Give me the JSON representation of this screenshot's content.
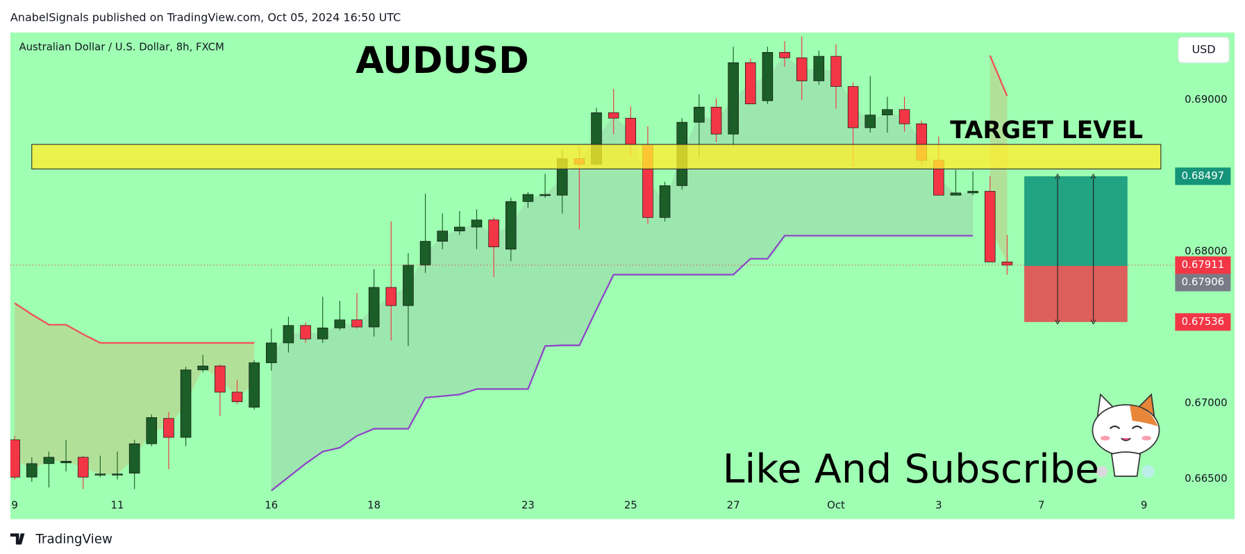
{
  "header": "AnabelSignals published on TradingView.com, Oct 05, 2024 16:50 UTC",
  "footer": "TradingView",
  "chart_data": {
    "type": "candlestick",
    "title": "AUDUSD",
    "symbol": "Australian Dollar / U.S. Dollar, 8h, FXCM",
    "currency": "USD",
    "annotations": [
      "TARGET LEVEL",
      "Like And Subscribe"
    ],
    "categories": [
      "9",
      null,
      null,
      null,
      null,
      null,
      "11",
      null,
      null,
      null,
      null,
      null,
      null,
      null,
      null,
      "16",
      null,
      null,
      null,
      null,
      null,
      "18",
      null,
      null,
      null,
      null,
      null,
      null,
      null,
      null,
      "23",
      null,
      null,
      null,
      null,
      null,
      "25",
      null,
      null,
      null,
      null,
      null,
      "27",
      null,
      null,
      null,
      null,
      null,
      "Oct",
      null,
      null,
      null,
      null,
      null,
      "3",
      null,
      null,
      null,
      null,
      null,
      "7",
      null,
      null,
      null,
      null,
      null,
      "9"
    ],
    "open": [
      0.66759,
      0.66513,
      0.66602,
      0.66607,
      0.66644,
      0.66529,
      0.66529,
      0.66539,
      0.66733,
      0.669,
      0.66775,
      0.6722,
      0.67246,
      0.67073,
      0.66974,
      0.67267,
      0.67398,
      0.67513,
      0.67424,
      0.67497,
      0.6755,
      0.67503,
      0.67764,
      0.67644,
      0.67911,
      0.68068,
      0.68136,
      0.68162,
      0.68209,
      0.68016,
      0.6833,
      0.68372,
      0.68372,
      0.68613,
      0.68576,
      0.68916,
      0.6888,
      0.68707,
      0.68225,
      0.68435,
      0.68853,
      0.68953,
      0.68775,
      0.69246,
      0.68995,
      0.69314,
      0.69278,
      0.69126,
      0.69288,
      0.69089,
      0.68817,
      0.68901,
      0.68937,
      0.68843,
      0.68602,
      0.68372,
      0.68387,
      0.68398,
      0.67932,
      null,
      null,
      null,
      null,
      null,
      null,
      null,
      null
    ],
    "high": [
      0.66785,
      0.66644,
      0.66681,
      0.66759,
      0.66654,
      0.66654,
      0.66681,
      0.66759,
      0.66927,
      0.66942,
      0.67241,
      0.67319,
      0.67256,
      0.67152,
      0.67283,
      0.67492,
      0.67571,
      0.67534,
      0.67702,
      0.67675,
      0.67728,
      0.67885,
      0.68199,
      0.6799,
      0.68382,
      0.68251,
      0.68267,
      0.68278,
      0.68225,
      0.68356,
      0.68393,
      0.68513,
      0.6867,
      0.68696,
      0.68948,
      0.69073,
      0.68958,
      0.68827,
      0.68461,
      0.6888,
      0.69037,
      0.69011,
      0.69351,
      0.69272,
      0.69351,
      0.69388,
      0.69419,
      0.69325,
      0.69367,
      0.69115,
      0.69157,
      0.69021,
      0.69021,
      0.68864,
      0.68759,
      0.68539,
      0.68529,
      0.68497,
      0.6811,
      null,
      null,
      null,
      null,
      null,
      null,
      null,
      null
    ],
    "low": [
      0.66497,
      0.66482,
      0.66445,
      0.6655,
      0.66434,
      0.66513,
      0.66497,
      0.66434,
      0.66717,
      0.66565,
      0.66717,
      0.67204,
      0.66916,
      0.66995,
      0.66958,
      0.67215,
      0.67335,
      0.67398,
      0.67398,
      0.67482,
      0.67492,
      0.6744,
      0.67414,
      0.67377,
      0.67859,
      0.68016,
      0.6811,
      0.68016,
      0.67832,
      0.67937,
      0.68288,
      0.68356,
      0.68251,
      0.68147,
      0.68565,
      0.68775,
      0.68628,
      0.68183,
      0.68199,
      0.68408,
      0.68618,
      0.68723,
      0.68696,
      0.68974,
      0.68974,
      0.6922,
      0.69,
      0.691,
      0.68942,
      0.6856,
      0.68785,
      0.68785,
      0.68791,
      0.68565,
      0.68372,
      0.68372,
      0.68372,
      0.67932,
      0.67848,
      null,
      null,
      null,
      null,
      null,
      null,
      null,
      null
    ],
    "close": [
      0.66513,
      0.66602,
      0.66644,
      0.66618,
      0.66513,
      0.66534,
      0.66534,
      0.66733,
      0.66906,
      0.66775,
      0.6722,
      0.67246,
      0.67073,
      0.6701,
      0.67267,
      0.67398,
      0.67513,
      0.67424,
      0.67497,
      0.6755,
      0.67503,
      0.67764,
      0.67644,
      0.67911,
      0.68068,
      0.68136,
      0.68162,
      0.68209,
      0.68031,
      0.6833,
      0.68377,
      0.68377,
      0.68613,
      0.68576,
      0.68916,
      0.6888,
      0.68707,
      0.68225,
      0.68435,
      0.68853,
      0.68953,
      0.68775,
      0.69246,
      0.68974,
      0.69314,
      0.69278,
      0.69126,
      0.69288,
      0.69089,
      0.68817,
      0.68901,
      0.68937,
      0.68843,
      0.68602,
      0.68372,
      0.68387,
      0.68398,
      0.67932,
      0.67911,
      null,
      null,
      null,
      null,
      null,
      null,
      null,
      null
    ],
    "up_color": "#1b5e28",
    "down_color": "#f23645",
    "indicators": [
      {
        "color": "#f0505a",
        "fill": "rgba(242,120,60,0.22)",
        "values": [
          0.6766,
          0.67586,
          0.67518,
          0.67518,
          0.67455,
          0.67398,
          0.67398,
          0.67398,
          0.67398,
          0.67398,
          0.67398,
          0.67398,
          0.67398,
          0.67398,
          0.67398,
          null,
          null,
          null,
          null,
          null,
          null,
          null,
          null,
          null,
          null,
          null,
          null,
          null,
          null,
          null,
          null,
          null,
          null,
          null,
          null,
          null,
          null,
          null,
          null,
          null,
          null,
          null,
          null,
          null,
          null,
          null,
          null,
          null,
          null,
          null,
          null,
          null,
          null,
          null,
          null,
          null,
          null,
          0.69293,
          0.69026,
          null,
          null,
          null,
          null,
          null,
          null,
          null,
          null
        ]
      },
      {
        "color": "#8e44c8",
        "fill": "rgba(150,170,160,0.28)",
        "values": [
          null,
          null,
          null,
          null,
          null,
          null,
          null,
          null,
          null,
          null,
          null,
          null,
          null,
          null,
          null,
          0.66424,
          0.66513,
          0.66602,
          0.66681,
          0.66707,
          0.66785,
          0.66832,
          0.66832,
          0.66832,
          0.67037,
          0.67047,
          0.67058,
          0.67094,
          0.67094,
          0.67094,
          0.67094,
          0.67377,
          0.67382,
          0.67382,
          0.67618,
          0.67848,
          0.67848,
          0.67848,
          0.67848,
          0.67848,
          0.67848,
          0.67848,
          0.67848,
          0.67953,
          0.67953,
          0.68105,
          0.68105,
          0.68105,
          0.68105,
          0.68105,
          0.68105,
          0.68105,
          0.68105,
          0.68105,
          0.68105,
          0.68105,
          0.68105,
          null,
          null,
          null,
          null,
          null,
          null,
          null,
          null,
          null,
          null
        ]
      }
    ],
    "target_zone": [
      0.68545,
      0.68707
    ],
    "zone_color": "#ffee2e",
    "position": {
      "target": 0.68497,
      "entry": 0.67906,
      "stop": 0.67536
    },
    "ylim": [
      0.66236,
      0.69445
    ],
    "yticks": [
      {
        "value": 0.665,
        "label": "0.66500"
      },
      {
        "value": 0.67,
        "label": "0.67000"
      },
      {
        "value": 0.68,
        "label": "0.68000"
      },
      {
        "value": 0.69,
        "label": "0.69000"
      }
    ]
  }
}
